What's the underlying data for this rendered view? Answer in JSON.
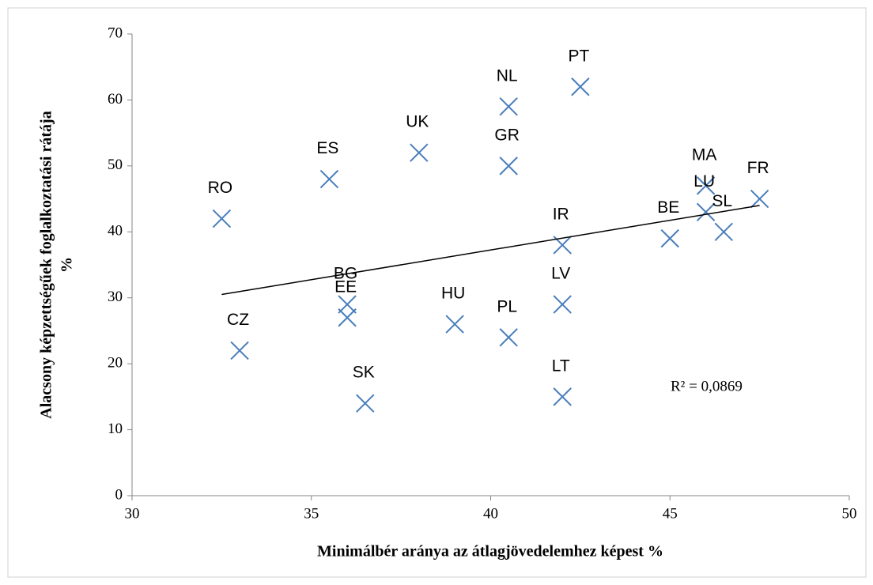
{
  "chart_data": {
    "type": "scatter",
    "xlabel": "Minimálbér aránya az átlagjövedelemhez képest %",
    "ylabel": [
      "Alacsony képzettségűek foglalkoztatási rátája",
      "%"
    ],
    "annotation": "R² = 0,0869",
    "categories": [
      "RO",
      "CZ",
      "ES",
      "BG",
      "EE",
      "SK",
      "UK",
      "HU",
      "NL",
      "GR",
      "PL",
      "PT",
      "IR",
      "LV",
      "LT",
      "BE",
      "MA",
      "LU",
      "SL",
      "FR"
    ],
    "x": [
      32.5,
      33,
      35.5,
      36,
      36,
      36.5,
      38,
      39,
      40.5,
      40.5,
      40.5,
      42.5,
      42,
      42,
      42,
      45,
      46,
      46,
      46.5,
      47.5
    ],
    "values": [
      42,
      22,
      48,
      29,
      27,
      14,
      52,
      26,
      59,
      50,
      24,
      62,
      38,
      29,
      15,
      39,
      47,
      43,
      40,
      45
    ],
    "color": "#4a7ebb",
    "trendline": {
      "x": [
        32.5,
        47.5
      ],
      "y": [
        30.5,
        44
      ],
      "color": "#000000"
    },
    "xlim": [
      30,
      50
    ],
    "xticks": [
      30,
      35,
      40,
      45,
      50
    ],
    "ylim": [
      0,
      70
    ],
    "yticks": [
      0,
      10,
      20,
      30,
      40,
      50,
      60,
      70
    ],
    "grid": false
  }
}
